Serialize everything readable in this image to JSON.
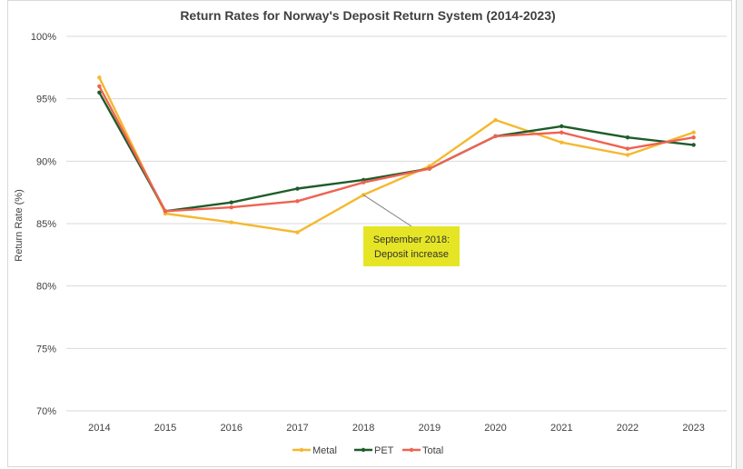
{
  "chart_data": {
    "type": "line",
    "title": "Return Rates for Norway's Deposit Return System (2014-2023)",
    "xlabel": "",
    "ylabel": "Return Rate (%)",
    "ylim": [
      70,
      100
    ],
    "y_ticks": [
      "100%",
      "95%",
      "90%",
      "85%",
      "80%",
      "75%",
      "70%"
    ],
    "y_tick_values": [
      100,
      95,
      90,
      85,
      80,
      75,
      70
    ],
    "categories": [
      "2014",
      "2015",
      "2016",
      "2017",
      "2018",
      "2019",
      "2020",
      "2021",
      "2022",
      "2023"
    ],
    "series": [
      {
        "name": "Metal",
        "color": "#f5b82e",
        "values": [
          96.7,
          85.8,
          85.1,
          84.3,
          87.3,
          89.6,
          93.3,
          91.5,
          90.5,
          92.3
        ]
      },
      {
        "name": "PET",
        "color": "#1e5c2a",
        "values": [
          95.5,
          86.0,
          86.7,
          87.8,
          88.5,
          89.4,
          92.0,
          92.8,
          91.9,
          91.3
        ]
      },
      {
        "name": "Total",
        "color": "#ee6352",
        "values": [
          96.0,
          86.0,
          86.3,
          86.8,
          88.3,
          89.4,
          92.0,
          92.3,
          91.0,
          91.9
        ]
      }
    ],
    "annotation": {
      "line1": "September 2018:",
      "line2": "Deposit increase",
      "points_to_category": "2018",
      "points_to_value": 87.3,
      "background": "#e5e526"
    },
    "grid": true,
    "legend_position": "bottom"
  }
}
